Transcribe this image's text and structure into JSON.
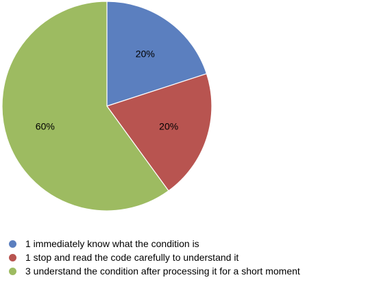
{
  "chart_data": {
    "type": "pie",
    "title": "",
    "categories": [
      "1 immediately know what the condition is",
      "1 stop and read the code carefully to understand it",
      "3 understand the condition after processing it for a short moment"
    ],
    "values": [
      20,
      20,
      60
    ],
    "labels": [
      "20%",
      "20%",
      "60%"
    ],
    "colors": [
      "#5b7fbf",
      "#b85450",
      "#9dbb61"
    ],
    "legend": "bottom"
  }
}
